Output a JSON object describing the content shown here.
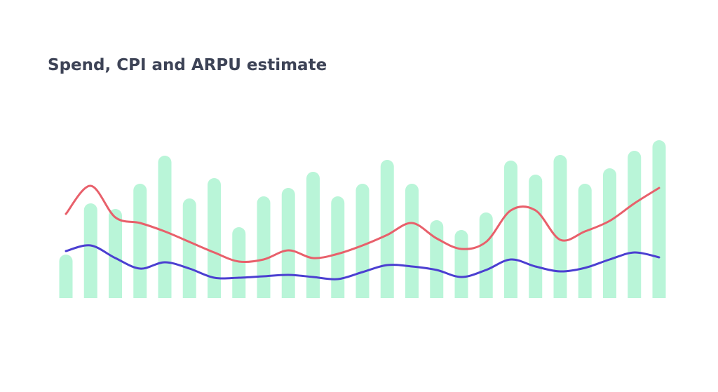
{
  "chart_data": {
    "type": "bar-line",
    "title": "Spend, CPI and ARPU estimate",
    "categories": [
      null,
      null,
      null,
      null,
      null,
      null,
      null,
      null,
      null,
      null,
      null,
      null,
      null,
      null,
      null,
      null,
      null,
      null,
      null,
      null,
      null,
      null,
      null,
      null,
      null
    ],
    "ylim": [
      0,
      250
    ],
    "series": [
      {
        "type": "bar",
        "color": "#b9f5d8",
        "values": [
          62,
          135,
          127,
          163,
          203,
          142,
          171,
          101,
          145,
          157,
          180,
          145,
          163,
          197,
          163,
          111,
          97,
          122,
          196,
          176,
          204,
          163,
          185,
          210,
          225
        ]
      },
      {
        "type": "line",
        "color": "#e8606b",
        "values": [
          120,
          160,
          115,
          107,
          95,
          80,
          65,
          52,
          55,
          68,
          57,
          63,
          75,
          90,
          107,
          85,
          70,
          80,
          125,
          125,
          83,
          95,
          110,
          135,
          157
        ]
      },
      {
        "type": "line",
        "color": "#4b3fd1",
        "values": [
          67,
          75,
          57,
          42,
          51,
          42,
          29,
          29,
          31,
          33,
          30,
          27,
          37,
          47,
          45,
          40,
          30,
          40,
          55,
          45,
          38,
          43,
          55,
          65,
          58
        ]
      }
    ]
  }
}
